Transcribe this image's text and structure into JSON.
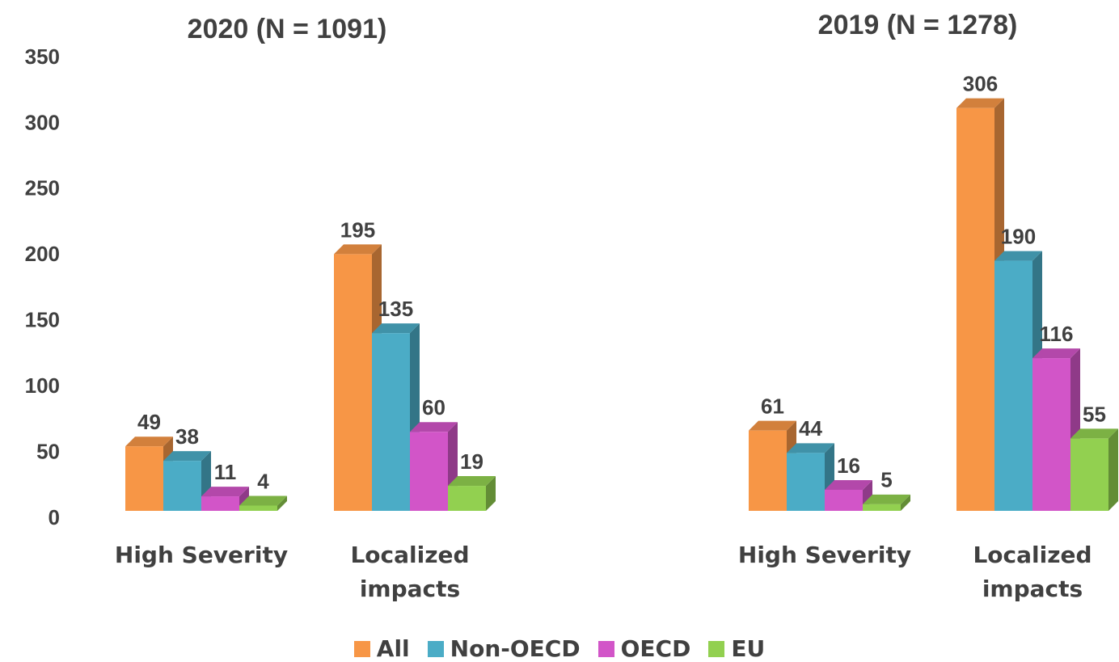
{
  "chart_data": {
    "type": "bar",
    "categories": [
      "High Severity",
      "Localized impacts"
    ],
    "ylim": [
      0,
      350
    ],
    "yticks": [
      0,
      50,
      100,
      150,
      200,
      250,
      300,
      350
    ],
    "series": [
      {
        "name": "All",
        "color": "#f79646"
      },
      {
        "name": "Non-OECD",
        "color": "#4bacc6"
      },
      {
        "name": "OECD",
        "color": "#d255c8"
      },
      {
        "name": "EU",
        "color": "#92d050"
      }
    ],
    "panels": [
      {
        "title": "2020 (N = 1091)",
        "series": [
          {
            "values": [
              49,
              195
            ]
          },
          {
            "values": [
              38,
              135
            ]
          },
          {
            "values": [
              11,
              60
            ]
          },
          {
            "values": [
              4,
              19
            ]
          }
        ]
      },
      {
        "title": "2019 (N = 1278)",
        "series": [
          {
            "values": [
              61,
              306
            ]
          },
          {
            "values": [
              44,
              190
            ]
          },
          {
            "values": [
              16,
              116
            ]
          },
          {
            "values": [
              5,
              55
            ]
          }
        ]
      }
    ]
  }
}
